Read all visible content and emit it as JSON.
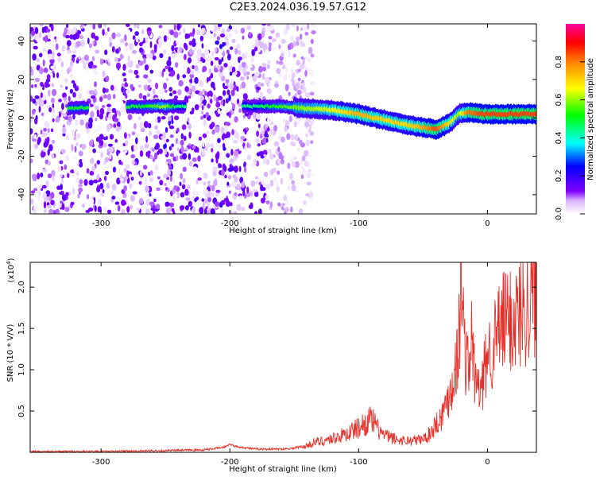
{
  "title": "C2E3.2024.036.19.57.G12",
  "chart_data": [
    {
      "type": "heatmap",
      "panel": "spectrogram",
      "xlabel": "Height of straight line (km)",
      "ylabel": "Frequency (Hz)",
      "xlim": [
        -355,
        38
      ],
      "ylim": [
        -50,
        49
      ],
      "xticks": [
        -300,
        -200,
        -100,
        0
      ],
      "yticks": [
        -40,
        -20,
        0,
        20,
        40
      ],
      "colorbar": {
        "label": "Normalized spectral amplitude",
        "range": [
          0,
          1
        ],
        "ticks": [
          0.0,
          0.2,
          0.4,
          0.6,
          0.8
        ],
        "colors": [
          "#ffffff",
          "#d9b3ff",
          "#8000ff",
          "#0000ff",
          "#00ffff",
          "#00ff00",
          "#ffff00",
          "#ff8000",
          "#ff0000",
          "#ff00a0"
        ]
      },
      "noise_region_x": [
        -355,
        -145
      ],
      "ridge": {
        "x": [
          -325,
          -270,
          -250,
          -240,
          -180,
          -160,
          -140,
          -120,
          -100,
          -80,
          -60,
          -50,
          -40,
          -30,
          -22,
          -15,
          -5,
          10,
          25,
          38
        ],
        "freq": [
          5,
          6,
          6,
          6,
          6,
          6,
          5,
          4,
          2,
          -1,
          -4,
          -5,
          -6,
          -3,
          2,
          3,
          2,
          2,
          2,
          2
        ],
        "amplitude": [
          0.5,
          0.5,
          0.6,
          0.45,
          0.45,
          0.55,
          0.6,
          0.65,
          0.75,
          0.7,
          0.7,
          0.75,
          0.85,
          0.7,
          0.6,
          0.8,
          0.85,
          0.85,
          0.85,
          0.85
        ]
      }
    },
    {
      "type": "line",
      "panel": "snr",
      "xlabel": "Height of straight line (km)",
      "ylabel": "SNR (10 * V/V)",
      "yscale_label": "(x10",
      "yscale_exp": "4",
      "xlim": [
        -355,
        38
      ],
      "ylim": [
        0,
        2.3
      ],
      "xticks": [
        -300,
        -200,
        -100,
        0
      ],
      "yticks": [
        0.5,
        1.0,
        1.5,
        2.0
      ],
      "ytick_labels": [
        "0.5",
        "1.0",
        "1.5",
        "2.0"
      ],
      "series": [
        {
          "color": "#e8302a",
          "x": [
            -355,
            -300,
            -250,
            -220,
            -205,
            -200,
            -195,
            -180,
            -160,
            -150,
            -140,
            -135,
            -130,
            -120,
            -110,
            -100,
            -95,
            -90,
            -85,
            -80,
            -75,
            -70,
            -60,
            -50,
            -45,
            -40,
            -35,
            -30,
            -28,
            -25,
            -22,
            -20,
            -18,
            -15,
            -12,
            -10,
            -5,
            0,
            5,
            10,
            15,
            20,
            25,
            30,
            35,
            38
          ],
          "y": [
            0.01,
            0.01,
            0.02,
            0.03,
            0.06,
            0.1,
            0.07,
            0.04,
            0.04,
            0.05,
            0.08,
            0.12,
            0.13,
            0.17,
            0.22,
            0.3,
            0.35,
            0.4,
            0.28,
            0.2,
            0.18,
            0.15,
            0.14,
            0.16,
            0.22,
            0.35,
            0.45,
            0.7,
            0.8,
            1.0,
            1.4,
            2.2,
            1.3,
            1.0,
            1.4,
            0.9,
            0.7,
            1.2,
            1.3,
            1.5,
            1.6,
            1.6,
            1.7,
            1.8,
            1.9,
            1.95
          ]
        }
      ]
    }
  ]
}
